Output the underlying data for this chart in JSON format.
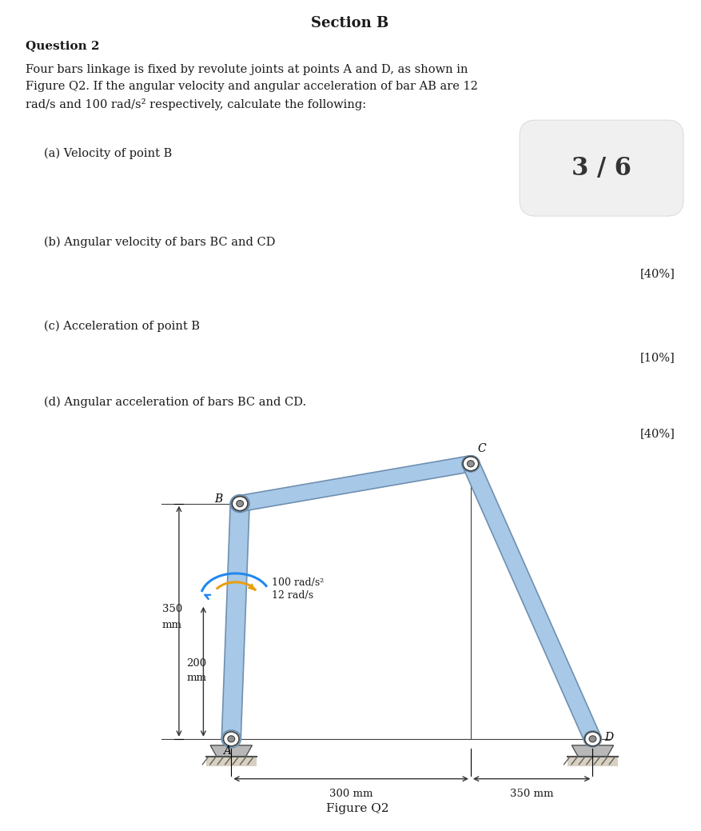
{
  "title": "Section B",
  "question_label": "Question 2",
  "intro_text": "Four bars linkage is fixed by revolute joints at points A and D, as shown in\nFigure Q2. If the angular velocity and angular acceleration of bar AB are 12\nrad/s and 100 rad/s² respectively, calculate the following:",
  "parts": [
    {
      "label": "(a) Velocity of point B",
      "mark": ""
    },
    {
      "label": "(b) Angular velocity of bars BC and CD",
      "mark": "[40%]"
    },
    {
      "label": "(c) Acceleration of point B",
      "mark": "[10%]"
    },
    {
      "label": "(d) Angular acceleration of bars BC and CD.",
      "mark": "[40%]"
    }
  ],
  "badge_text": "3 / 6",
  "figure_label": "Figure Q2",
  "dim_300mm": "300 mm",
  "dim_350mm_h": "350 mm",
  "annotation_acc": "100 rad/s²",
  "annotation_vel": "12 rad/s",
  "bg_color": "#ffffff",
  "text_color": "#1a1a1a",
  "link_color_fill": "#a8c8e8",
  "link_color_edge": "#7090b0"
}
